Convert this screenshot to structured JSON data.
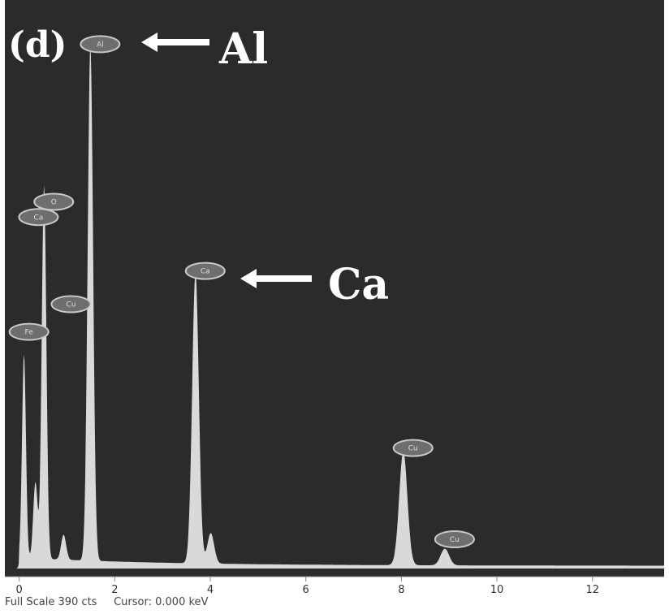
{
  "figure": {
    "panel_label": "(d)",
    "callouts": [
      {
        "element": "Al",
        "text": "Al"
      },
      {
        "element": "Ca",
        "text": "Ca"
      }
    ],
    "status": {
      "full_scale": "Full Scale 390 cts",
      "cursor": "Cursor: 0.000 keV"
    }
  },
  "colors": {
    "background": "#2b2b2b",
    "spectrum_fill": "#d9d9d9",
    "peak_label_fill": "#6e6e6e",
    "peak_label_stroke": "#c8c8c8",
    "text": "#ffffff"
  },
  "chart_data": {
    "type": "area",
    "title": "",
    "xlabel": "",
    "ylabel": "",
    "x_unit": "keV",
    "xlim": [
      -0.3,
      13.5
    ],
    "ylim": [
      0,
      390
    ],
    "x_ticks": [
      0,
      2,
      4,
      6,
      8,
      10,
      12
    ],
    "grid": false,
    "legend": "none",
    "series": [
      {
        "peaks": [
          {
            "label": "Fe",
            "energy": 0.1,
            "counts": 147
          },
          {
            "label": "Ca",
            "energy": 0.34,
            "counts": 55
          },
          {
            "label": "O",
            "energy": 0.52,
            "counts": 270
          },
          {
            "label": "Cu",
            "energy": 0.93,
            "counts": 18
          },
          {
            "label": "Al",
            "energy": 1.49,
            "counts": 372
          },
          {
            "label": "Ca",
            "energy": 3.69,
            "counts": 210
          },
          {
            "label": "Ca",
            "energy": 4.01,
            "counts": 22
          },
          {
            "label": "Cu",
            "energy": 8.04,
            "counts": 82
          },
          {
            "label": "Cu",
            "energy": 8.91,
            "counts": 12
          }
        ]
      }
    ],
    "peak_labels": [
      {
        "text": "Fe",
        "energy": 0.0,
        "counts": 170
      },
      {
        "text": "Ca",
        "energy": 0.2,
        "counts": 253
      },
      {
        "text": "O",
        "energy": 0.52,
        "counts": 264
      },
      {
        "text": "Cu",
        "energy": 0.88,
        "counts": 190
      },
      {
        "text": "Al",
        "energy": 1.49,
        "counts": 378
      },
      {
        "text": "Ca",
        "energy": 3.69,
        "counts": 214
      },
      {
        "text": "Cu",
        "energy": 8.04,
        "counts": 86
      },
      {
        "text": "Cu",
        "energy": 8.91,
        "counts": 20
      }
    ]
  }
}
